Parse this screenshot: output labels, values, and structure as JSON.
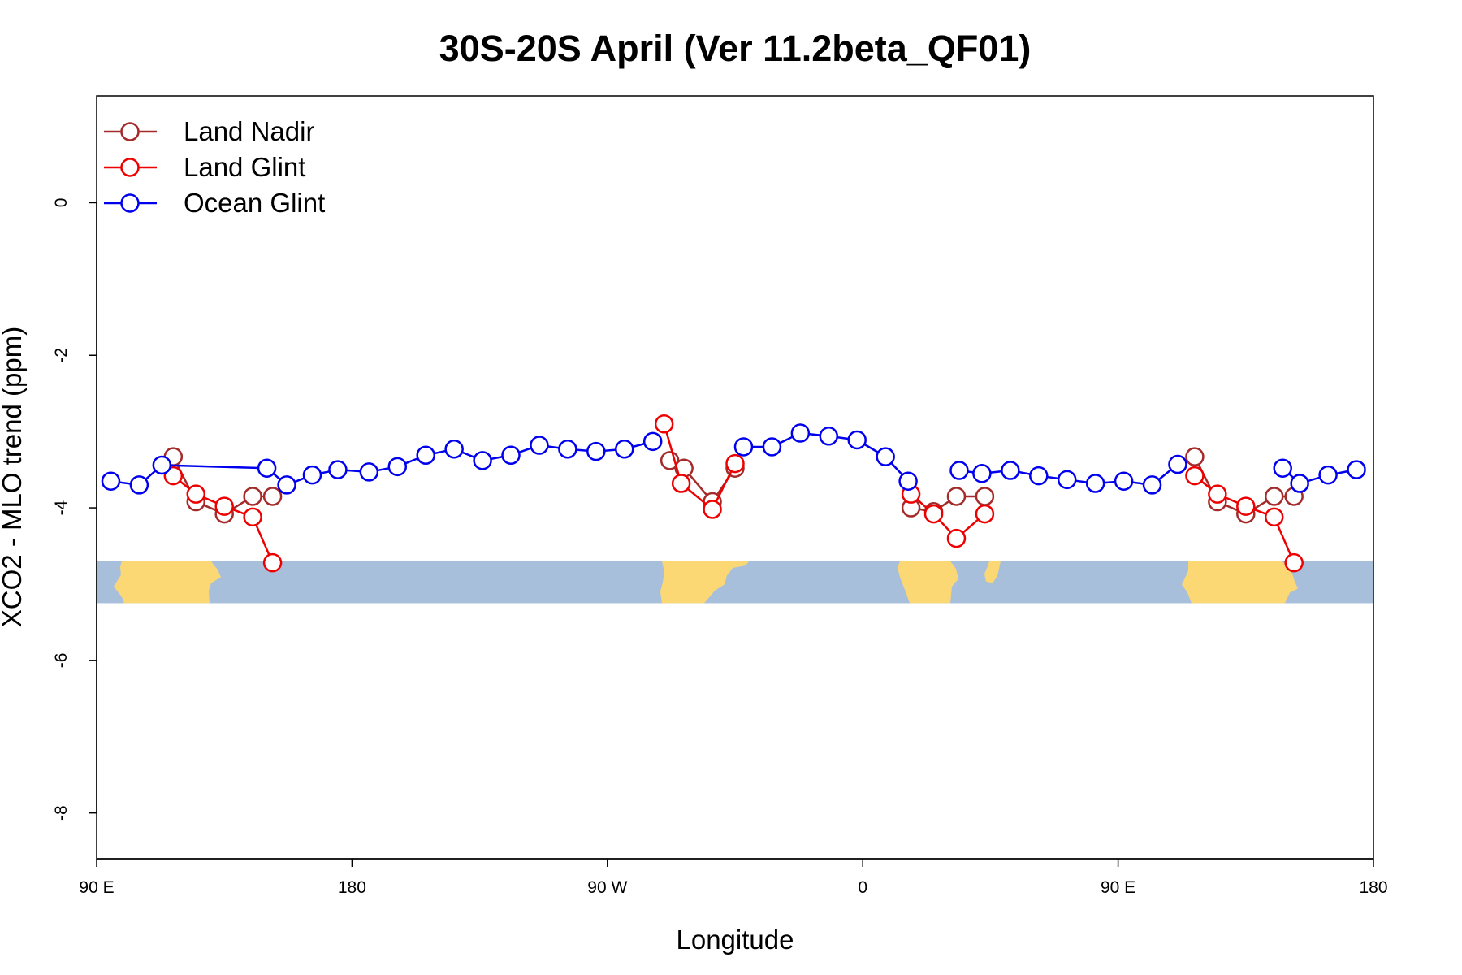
{
  "chart_data": {
    "type": "line",
    "title": "30S-20S April (Ver 11.2beta_QF01)",
    "xlabel": "Longitude",
    "ylabel": "XCO2 - MLO trend (ppm)",
    "xlim": [
      90,
      540
    ],
    "ylim": [
      -8.6,
      1.4
    ],
    "x_ticks": [
      {
        "value": 90,
        "label": "90 E"
      },
      {
        "value": 180,
        "label": "180"
      },
      {
        "value": 270,
        "label": "90 W"
      },
      {
        "value": 360,
        "label": "0"
      },
      {
        "value": 450,
        "label": "90 E"
      },
      {
        "value": 540,
        "label": "180"
      }
    ],
    "y_ticks": [
      {
        "value": 0,
        "label": "0"
      },
      {
        "value": -2,
        "label": "-2"
      },
      {
        "value": -4,
        "label": "-4"
      },
      {
        "value": -6,
        "label": "-6"
      },
      {
        "value": -8,
        "label": "-8"
      }
    ],
    "legend_position": "top-left",
    "grid": false,
    "map_strip": {
      "y_top": -4.7,
      "y_bottom": -5.25,
      "ocean_color": "#a8bfdc",
      "land_color": "#fbd874"
    },
    "series": [
      {
        "name": "Land Nadir",
        "color": "#a52a2a",
        "segments": [
          [
            [
              117,
              -3.33
            ],
            [
              125,
              -3.92
            ],
            [
              135,
              -4.08
            ],
            [
              145,
              -3.85
            ],
            [
              152,
              -3.85
            ]
          ],
          [
            [
              292,
              -3.38
            ],
            [
              297,
              -3.48
            ],
            [
              307,
              -3.92
            ],
            [
              315,
              -3.48
            ]
          ],
          [
            [
              377,
              -4.0
            ],
            [
              385,
              -4.05
            ],
            [
              393,
              -3.85
            ],
            [
              403,
              -3.85
            ]
          ],
          [
            [
              477,
              -3.33
            ],
            [
              485,
              -3.92
            ],
            [
              495,
              -4.08
            ],
            [
              505,
              -3.85
            ],
            [
              512,
              -3.85
            ]
          ]
        ]
      },
      {
        "name": "Land Glint",
        "color": "#ee0000",
        "segments": [
          [
            [
              117,
              -3.58
            ],
            [
              125,
              -3.82
            ],
            [
              135,
              -3.98
            ],
            [
              145,
              -4.12
            ],
            [
              152,
              -4.72
            ]
          ],
          [
            [
              290,
              -2.9
            ],
            [
              296,
              -3.68
            ],
            [
              307,
              -4.02
            ],
            [
              315,
              -3.42
            ]
          ],
          [
            [
              377,
              -3.82
            ],
            [
              385,
              -4.08
            ],
            [
              393,
              -4.4
            ],
            [
              403,
              -4.08
            ]
          ],
          [
            [
              477,
              -3.58
            ],
            [
              485,
              -3.82
            ],
            [
              495,
              -3.98
            ],
            [
              505,
              -4.12
            ],
            [
              512,
              -4.72
            ]
          ]
        ]
      },
      {
        "name": "Ocean Glint",
        "color": "#0000ee",
        "segments": [
          [
            [
              95,
              -3.65
            ],
            [
              105,
              -3.7
            ],
            [
              113,
              -3.44
            ],
            [
              150,
              -3.48
            ],
            [
              157,
              -3.7
            ],
            [
              166,
              -3.57
            ],
            [
              175,
              -3.5
            ],
            [
              186,
              -3.53
            ],
            [
              196,
              -3.46
            ],
            [
              206,
              -3.31
            ],
            [
              216,
              -3.23
            ],
            [
              226,
              -3.38
            ],
            [
              236,
              -3.31
            ],
            [
              246,
              -3.18
            ],
            [
              256,
              -3.23
            ],
            [
              266,
              -3.26
            ],
            [
              276,
              -3.23
            ],
            [
              286,
              -3.13
            ]
          ],
          [
            [
              318,
              -3.2
            ],
            [
              328,
              -3.2
            ],
            [
              338,
              -3.02
            ],
            [
              348,
              -3.06
            ],
            [
              358,
              -3.11
            ],
            [
              368,
              -3.33
            ],
            [
              376,
              -3.65
            ]
          ],
          [
            [
              394,
              -3.51
            ],
            [
              402,
              -3.55
            ],
            [
              412,
              -3.51
            ],
            [
              422,
              -3.58
            ],
            [
              432,
              -3.63
            ],
            [
              442,
              -3.68
            ],
            [
              452,
              -3.65
            ],
            [
              462,
              -3.7
            ],
            [
              471,
              -3.43
            ]
          ],
          [
            [
              508,
              -3.48
            ],
            [
              514,
              -3.68
            ],
            [
              524,
              -3.57
            ],
            [
              534,
              -3.5
            ]
          ]
        ]
      }
    ]
  }
}
